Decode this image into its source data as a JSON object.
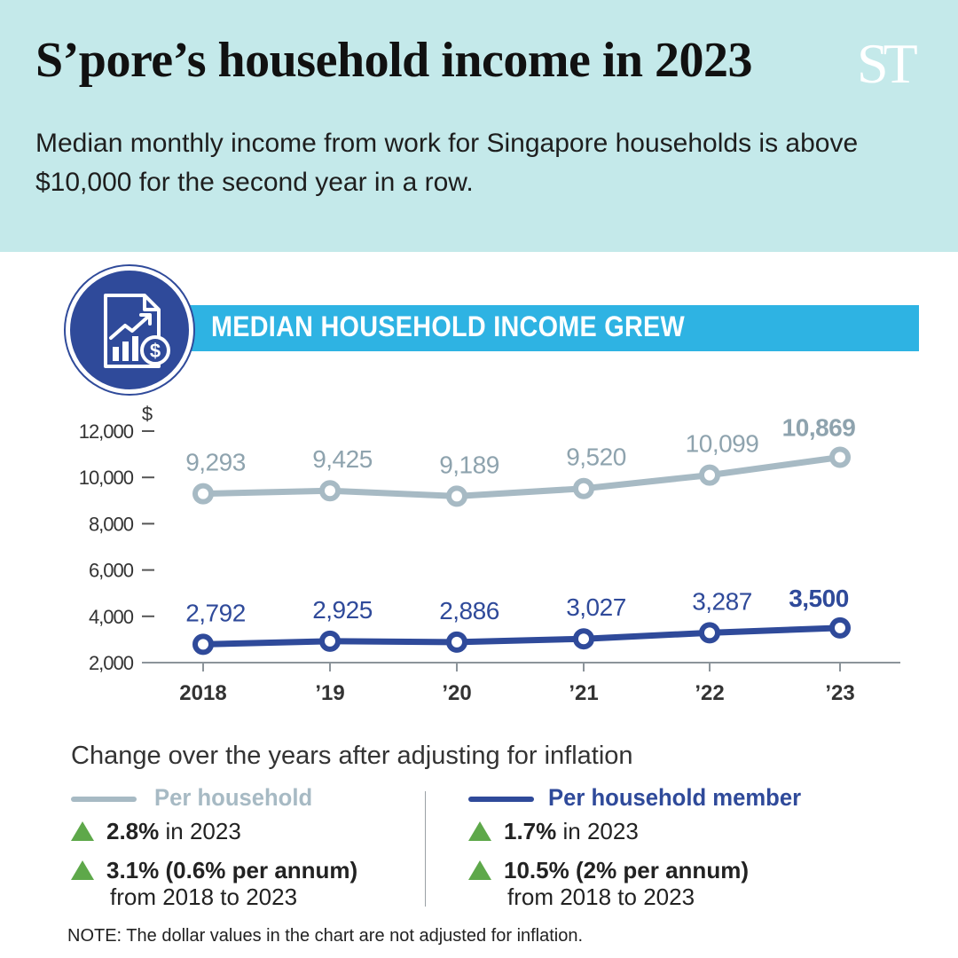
{
  "header": {
    "title": "S’pore’s household income in 2023",
    "logo_text": "ST",
    "subtitle": "Median monthly income from work for Singapore households is above $10,000 for the second year in a row."
  },
  "banner": {
    "title": "MEDIAN HOUSEHOLD INCOME GREW",
    "icon": "income-report-icon"
  },
  "chart_data": {
    "type": "line",
    "categories": [
      "2018",
      "’19",
      "’20",
      "’21",
      "’22",
      "’23"
    ],
    "ylabel": "$",
    "yticks": [
      "12,000",
      "10,000",
      "8,000",
      "6,000",
      "4,000",
      "2,000"
    ],
    "ytick_values": [
      12000,
      10000,
      8000,
      6000,
      4000,
      2000
    ],
    "ylim": [
      2000,
      12000
    ],
    "grid": false,
    "series": [
      {
        "key": "household",
        "values": [
          9293,
          9425,
          9189,
          9520,
          10099,
          10869
        ],
        "labels": [
          "9,293",
          "9,425",
          "9,189",
          "9,520",
          "10,099",
          "10,869"
        ],
        "color": "#a7bac4",
        "label_color": "#8ea3ae"
      },
      {
        "key": "member",
        "values": [
          2792,
          2925,
          2886,
          3027,
          3287,
          3500
        ],
        "labels": [
          "2,792",
          "2,925",
          "2,886",
          "3,027",
          "3,287",
          "3,500"
        ],
        "color": "#2f4a9a",
        "label_color": "#2f4a9a"
      }
    ]
  },
  "inflation": {
    "heading": "Change over the years after adjusting for inflation",
    "per_household": {
      "name": "Per household",
      "color": "#a7bac4",
      "stat1_value": "2.8%",
      "stat1_text": " in 2023",
      "stat2_value": "3.1% (0.6% per annum)",
      "stat2_text": "from 2018 to 2023"
    },
    "per_member": {
      "name": "Per household member",
      "color": "#2f4a9a",
      "stat1_value": "1.7%",
      "stat1_text": " in 2023",
      "stat2_value": "10.5% (2% per annum)",
      "stat2_text": "from 2018 to 2023"
    },
    "up_color": "#5ea84a"
  },
  "note": "NOTE: The dollar values in the chart are not adjusted for inflation."
}
